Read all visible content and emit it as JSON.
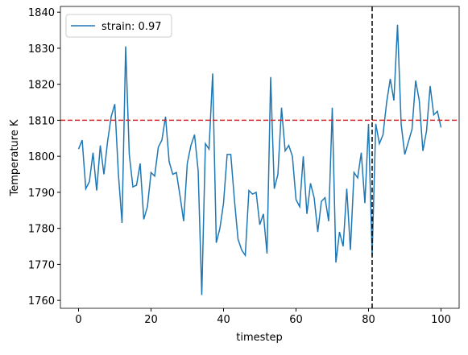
{
  "chart_data": {
    "type": "line",
    "xlabel": "timestep",
    "ylabel": "Temperature K",
    "x": [
      0,
      1,
      2,
      3,
      4,
      5,
      6,
      7,
      8,
      9,
      10,
      11,
      12,
      13,
      14,
      15,
      16,
      17,
      18,
      19,
      20,
      21,
      22,
      23,
      24,
      25,
      26,
      27,
      28,
      29,
      30,
      31,
      32,
      33,
      34,
      35,
      36,
      37,
      38,
      39,
      40,
      41,
      42,
      43,
      44,
      45,
      46,
      47,
      48,
      49,
      50,
      51,
      52,
      53,
      54,
      55,
      56,
      57,
      58,
      59,
      60,
      61,
      62,
      63,
      64,
      65,
      66,
      67,
      68,
      69,
      70,
      71,
      72,
      73,
      74,
      75,
      76,
      77,
      78,
      79,
      80,
      81,
      82,
      83,
      84,
      85,
      86,
      87,
      88,
      89,
      90,
      91,
      92,
      93,
      94,
      95,
      96,
      97,
      98,
      99,
      100
    ],
    "series": [
      {
        "name": "strain: 0.97",
        "color": "#1f77b4",
        "values": [
          1802,
          1804.5,
          1791,
          1793,
          1801,
          1790.5,
          1803,
          1795,
          1804,
          1811,
          1814.5,
          1795,
          1781.5,
          1830.5,
          1800.5,
          1791.5,
          1792,
          1798,
          1782.5,
          1786,
          1795.5,
          1794.5,
          1802.5,
          1804.5,
          1811,
          1798.5,
          1795,
          1795.5,
          1789,
          1782,
          1798,
          1803,
          1806,
          1796,
          1761.5,
          1803.5,
          1802,
          1823,
          1776,
          1780,
          1787,
          1800.5,
          1800.5,
          1788,
          1777,
          1774,
          1772.5,
          1790.5,
          1789.5,
          1790,
          1781,
          1784,
          1773,
          1822,
          1791,
          1795,
          1813.5,
          1801.5,
          1803,
          1800,
          1788,
          1786,
          1800,
          1784,
          1792.5,
          1788.5,
          1779,
          1787.5,
          1788.5,
          1782,
          1813.5,
          1770.5,
          1779,
          1775,
          1791,
          1774,
          1795.5,
          1794,
          1801,
          1787,
          1809,
          1772.5,
          1809,
          1803.5,
          1806,
          1815,
          1821.5,
          1815.5,
          1836.5,
          1809,
          1800.5,
          1804,
          1807.5,
          1821,
          1815.5,
          1801.5,
          1807,
          1819.5,
          1811.5,
          1812.5,
          1808
        ]
      }
    ],
    "hline": {
      "value": 1810,
      "color": "#d62728"
    },
    "vline": {
      "value": 81,
      "color": "#000000"
    },
    "xlim": [
      -5,
      105
    ],
    "xticks": [
      0,
      20,
      40,
      60,
      80,
      100
    ],
    "ylim": [
      1757.8,
      1841.6
    ],
    "yticks": [
      1760,
      1770,
      1780,
      1790,
      1800,
      1810,
      1820,
      1830,
      1840
    ],
    "legend": "upper left"
  }
}
